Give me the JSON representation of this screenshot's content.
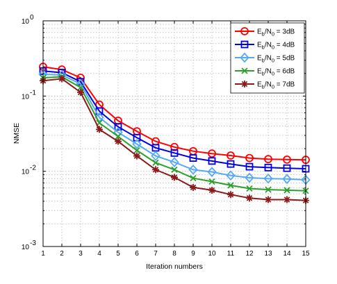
{
  "chart_data": {
    "type": "line",
    "xlabel": "Iteration numbers",
    "ylabel": "NMSE",
    "x": [
      1,
      2,
      3,
      4,
      5,
      6,
      7,
      8,
      9,
      10,
      11,
      12,
      13,
      14,
      15
    ],
    "xlim": [
      1,
      15
    ],
    "ylim": [
      0.001,
      1
    ],
    "yscale": "log",
    "grid": true,
    "legend_position": "top-right",
    "x_tick_labels": [
      "1",
      "2",
      "3",
      "4",
      "5",
      "6",
      "7",
      "8",
      "9",
      "10",
      "11",
      "12",
      "13",
      "14",
      "15"
    ],
    "y_tick_labels": [
      {
        "base": "10",
        "exp": "0",
        "value": 1
      },
      {
        "base": "10",
        "exp": "-1",
        "value": 0.1
      },
      {
        "base": "10",
        "exp": "-2",
        "value": 0.01
      },
      {
        "base": "10",
        "exp": "-3",
        "value": 0.001
      }
    ],
    "series": [
      {
        "name": "Eb/N0 = 3dB",
        "legend_parts": {
          "main": "E",
          "sub1": "b",
          "mid": "/N",
          "sub2": "0",
          "tail": " = 3dB"
        },
        "color": "#ff0000",
        "marker": "circle",
        "values": [
          0.245,
          0.225,
          0.175,
          0.077,
          0.047,
          0.034,
          0.025,
          0.021,
          0.0185,
          0.0172,
          0.0162,
          0.015,
          0.0145,
          0.0143,
          0.0142
        ]
      },
      {
        "name": "Eb/N0 = 4dB",
        "legend_parts": {
          "main": "E",
          "sub1": "b",
          "mid": "/N",
          "sub2": "0",
          "tail": " = 4dB"
        },
        "color": "#0000e0",
        "marker": "square",
        "values": [
          0.215,
          0.205,
          0.155,
          0.063,
          0.039,
          0.028,
          0.0205,
          0.0175,
          0.015,
          0.0137,
          0.0125,
          0.0115,
          0.0112,
          0.011,
          0.0108
        ]
      },
      {
        "name": "Eb/N0 = 5dB",
        "legend_parts": {
          "main": "E",
          "sub1": "b",
          "mid": "/N",
          "sub2": "0",
          "tail": " = 5dB"
        },
        "color": "#55aaf0",
        "marker": "diamond",
        "values": [
          0.195,
          0.19,
          0.145,
          0.052,
          0.033,
          0.023,
          0.016,
          0.0132,
          0.0105,
          0.0098,
          0.0088,
          0.0082,
          0.008,
          0.0079,
          0.0077
        ]
      },
      {
        "name": "Eb/N0 = 6dB",
        "legend_parts": {
          "main": "E",
          "sub1": "b",
          "mid": "/N",
          "sub2": "0",
          "tail": " = 6dB"
        },
        "color": "#2ca02c",
        "marker": "x",
        "values": [
          0.175,
          0.18,
          0.13,
          0.044,
          0.029,
          0.019,
          0.013,
          0.0105,
          0.0081,
          0.0073,
          0.0065,
          0.0059,
          0.0057,
          0.0056,
          0.0055
        ]
      },
      {
        "name": "Eb/N0 = 7dB",
        "legend_parts": {
          "main": "E",
          "sub1": "b",
          "mid": "/N",
          "sub2": "0",
          "tail": " = 7dB"
        },
        "color": "#8b1a1a",
        "marker": "star",
        "values": [
          0.16,
          0.17,
          0.112,
          0.036,
          0.025,
          0.016,
          0.0105,
          0.0083,
          0.0061,
          0.0056,
          0.0049,
          0.0044,
          0.0042,
          0.0042,
          0.0041
        ]
      }
    ]
  }
}
